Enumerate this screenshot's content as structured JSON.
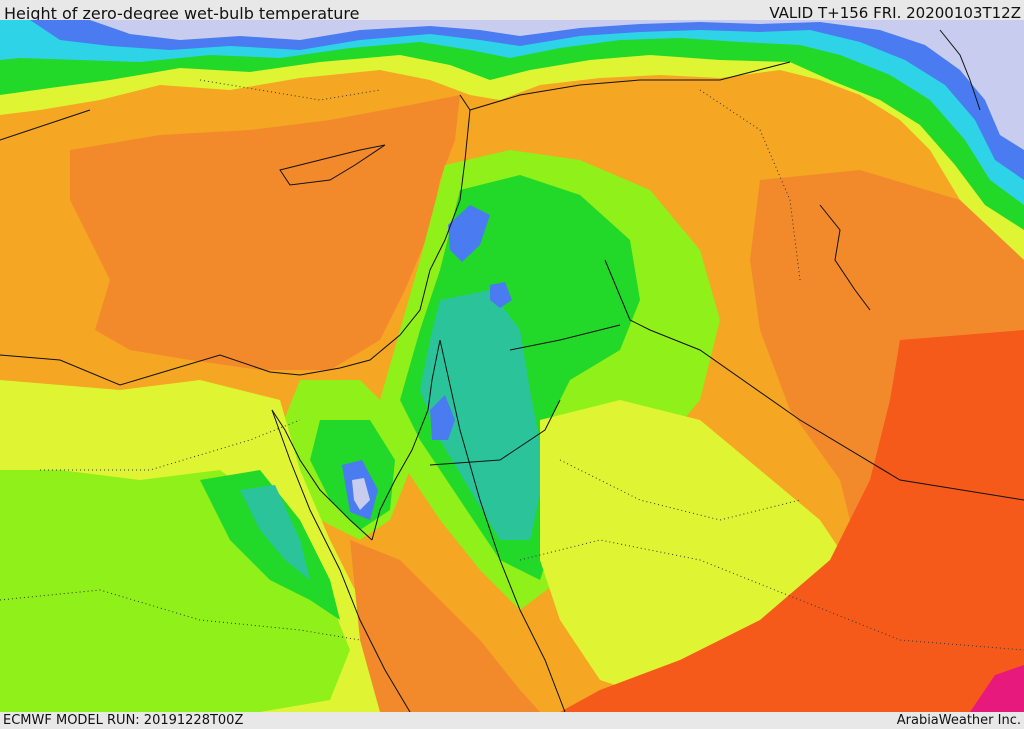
{
  "header": {
    "title": "Height of zero-degree wet-bulb temperature",
    "valid_time": "VALID T+156 FRI. 20200103T12Z"
  },
  "footer": {
    "model_run": "ECMWF MODEL RUN: 20191228T00Z",
    "credit": "ArabiaWeather Inc."
  },
  "map": {
    "field": "zero-degree wet-bulb height",
    "colors": {
      "lowest": "#c8cdf0",
      "blue": "#4a7bf0",
      "cyan": "#2fd3e8",
      "teal": "#2bc49a",
      "green": "#22d829",
      "lime": "#90f01a",
      "yellow": "#dff533",
      "light_orange": "#f5a623",
      "orange": "#f28a2c",
      "red_orange": "#f55a1a",
      "magenta": "#e8197d"
    }
  }
}
